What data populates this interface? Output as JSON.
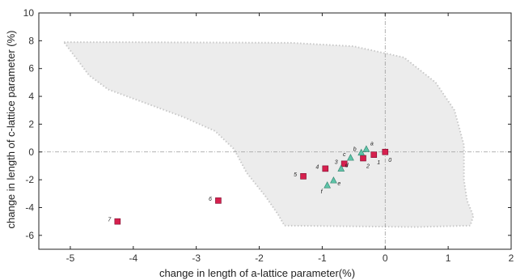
{
  "chart_data": {
    "type": "scatter",
    "title": "",
    "xlabel": "change in length of  a-lattice parameter(%)",
    "ylabel": "change in length of  c-lattice parameter (%)",
    "xlim": [
      -5.5,
      2
    ],
    "ylim": [
      -7,
      10
    ],
    "x_ticks": [
      -5,
      -4,
      -3,
      -2,
      -1,
      0,
      1,
      2
    ],
    "y_ticks": [
      -6,
      -4,
      -2,
      0,
      2,
      4,
      6,
      8,
      10
    ],
    "grid": false,
    "reference_lines": {
      "x": 0,
      "y": 0,
      "style": "dash-dot"
    },
    "shaded_region": {
      "points": [
        [
          -5.1,
          7.9
        ],
        [
          -4.2,
          7.9
        ],
        [
          -1.5,
          7.85
        ],
        [
          -0.5,
          7.6
        ],
        [
          0.3,
          6.8
        ],
        [
          0.8,
          5.0
        ],
        [
          1.1,
          3.0
        ],
        [
          1.25,
          0.5
        ],
        [
          1.25,
          -2.0
        ],
        [
          1.3,
          -3.5
        ],
        [
          1.4,
          -4.6
        ],
        [
          1.35,
          -5.3
        ],
        [
          0.5,
          -5.4
        ],
        [
          -1.6,
          -5.3
        ],
        [
          -1.7,
          -4.5
        ],
        [
          -1.9,
          -3.2
        ],
        [
          -2.2,
          -1.5
        ],
        [
          -2.4,
          0.2
        ],
        [
          -2.7,
          1.5
        ],
        [
          -3.2,
          2.5
        ],
        [
          -3.8,
          3.5
        ],
        [
          -4.4,
          4.5
        ],
        [
          -4.7,
          5.5
        ]
      ],
      "color": "#ececec",
      "edge_color": "#c8c8c8"
    },
    "series": [
      {
        "marker": "square",
        "color": "#d6204e",
        "points": [
          {
            "x": 0.0,
            "y": 0.0,
            "label": "0"
          },
          {
            "x": -0.18,
            "y": -0.2,
            "label": "1"
          },
          {
            "x": -0.35,
            "y": -0.45,
            "label": "2"
          },
          {
            "x": -0.65,
            "y": -0.85,
            "label": "3"
          },
          {
            "x": -0.95,
            "y": -1.2,
            "label": "4"
          },
          {
            "x": -1.3,
            "y": -1.75,
            "label": "5"
          },
          {
            "x": -2.65,
            "y": -3.5,
            "label": "6"
          },
          {
            "x": -4.25,
            "y": -5.0,
            "label": "7"
          }
        ]
      },
      {
        "marker": "triangle",
        "color": "#5ec4a8",
        "points": [
          {
            "x": -0.3,
            "y": 0.2,
            "label": "a"
          },
          {
            "x": -0.38,
            "y": -0.05,
            "label": "b"
          },
          {
            "x": -0.55,
            "y": -0.42,
            "label": "c"
          },
          {
            "x": -0.7,
            "y": -1.2,
            "label": "d"
          },
          {
            "x": -0.82,
            "y": -2.05,
            "label": "e"
          },
          {
            "x": -0.92,
            "y": -2.4,
            "label": "f"
          }
        ]
      }
    ]
  }
}
